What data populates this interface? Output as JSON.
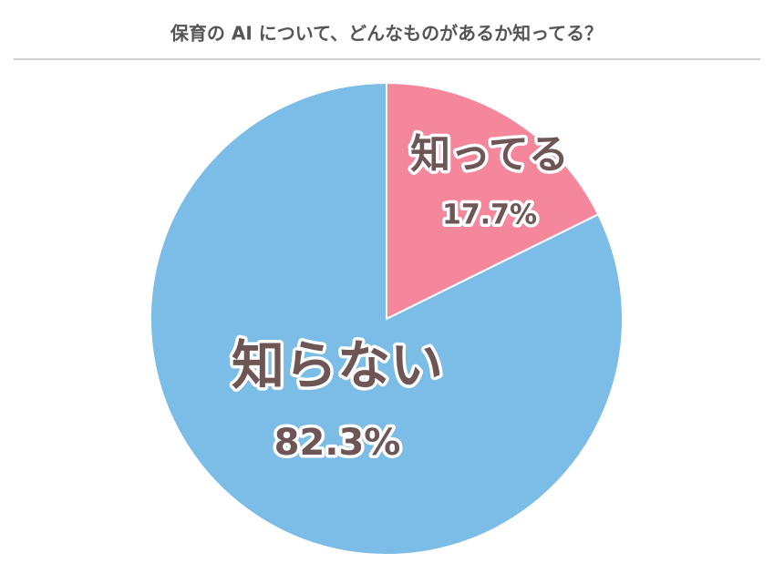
{
  "chart_data": {
    "type": "pie",
    "title": "保育の AI について、どんなものがあるか知ってる？",
    "categories": [
      "知ってる",
      "知らない"
    ],
    "values": [
      17.7,
      82.3
    ],
    "value_labels": [
      "17.7%",
      "82.3%"
    ],
    "colors": [
      "#f4879b",
      "#7bbde6"
    ]
  }
}
